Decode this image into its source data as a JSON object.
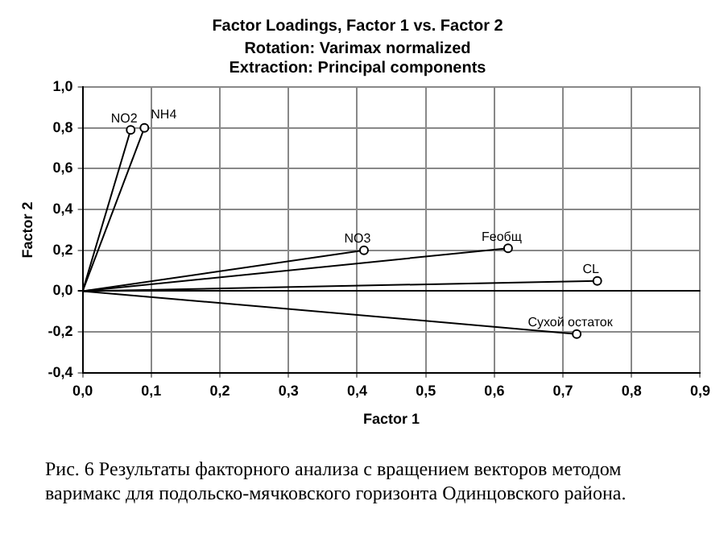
{
  "chart_data": {
    "type": "line",
    "title": "Factor Loadings, Factor 1 vs. Factor 2",
    "subtitle": "Rotation: Varimax normalized\nExtraction: Principal components",
    "xlabel": "Factor 1",
    "ylabel": "Factor 2",
    "series": [
      {
        "name": "NO2",
        "color": "#000000",
        "x": [
          0,
          0.07
        ],
        "values": [
          0,
          0.79
        ]
      },
      {
        "name": "NH4",
        "color": "#000000",
        "x": [
          0,
          0.09
        ],
        "values": [
          0,
          0.8
        ]
      },
      {
        "name": "NO3",
        "color": "#000000",
        "x": [
          0,
          0.41
        ],
        "values": [
          0,
          0.2
        ]
      },
      {
        "name": "Feобщ",
        "color": "#000000",
        "x": [
          0,
          0.62
        ],
        "values": [
          0,
          0.21
        ]
      },
      {
        "name": "CL",
        "color": "#000000",
        "x": [
          0,
          0.75
        ],
        "values": [
          0,
          0.05
        ]
      },
      {
        "name": "Сухой остаток",
        "color": "#000000",
        "x": [
          0,
          0.72
        ],
        "values": [
          0,
          -0.21
        ]
      }
    ],
    "xlim": [
      0,
      0.9
    ],
    "xticks": [
      {
        "value": 0,
        "label": "0,0"
      },
      {
        "value": 0.1,
        "label": "0,1"
      },
      {
        "value": 0.2,
        "label": "0,2"
      },
      {
        "value": 0.3,
        "label": "0,3"
      },
      {
        "value": 0.4,
        "label": "0,4"
      },
      {
        "value": 0.5,
        "label": "0,5"
      },
      {
        "value": 0.6,
        "label": "0,6"
      },
      {
        "value": 0.7,
        "label": "0,7"
      },
      {
        "value": 0.8,
        "label": "0,8"
      },
      {
        "value": 0.9,
        "label": "0,9"
      }
    ],
    "ylim": [
      -0.4,
      1
    ],
    "yticks": [
      {
        "value": -0.4,
        "label": "-0,4"
      },
      {
        "value": -0.2,
        "label": "-0,2"
      },
      {
        "value": 0,
        "label": "0,0"
      },
      {
        "value": 0.2,
        "label": "0,2"
      },
      {
        "value": 0.4,
        "label": "0,4"
      },
      {
        "value": 0.6,
        "label": "0,6"
      },
      {
        "value": 0.8,
        "label": "0,8"
      },
      {
        "value": 1,
        "label": "1,0"
      }
    ],
    "grid": true,
    "legend": false,
    "marker": "circle",
    "line_style": "solid",
    "annotations": [
      "Рис. 6 Результаты факторного анализа с вращением векторов методом варимакс для подольско-мячковского горизонта Одинцовского района."
    ]
  }
}
